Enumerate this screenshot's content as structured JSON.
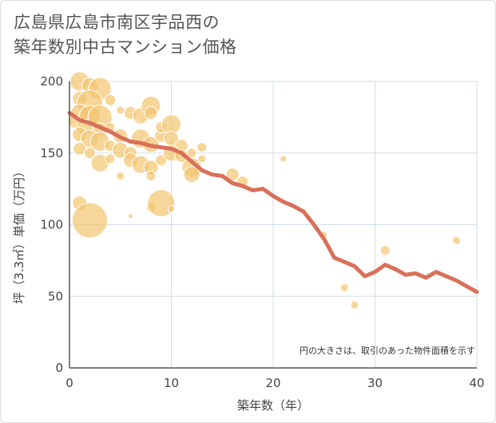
{
  "title_line1": "広島県広島市南区宇品西の",
  "title_line2": "築年数別中古マンション価格",
  "colors": {
    "bubble": "#f2c46d",
    "line": "#d9705a",
    "grid": "#d0dde6",
    "axis": "#555555"
  },
  "chart_data": {
    "type": "scatter",
    "xlabel": "築年数（年）",
    "ylabel": "坪（3.3㎡）単価（万円）",
    "xlim": [
      0,
      40
    ],
    "ylim": [
      0,
      200
    ],
    "x_ticks": [
      0,
      10,
      20,
      30,
      40
    ],
    "y_ticks": [
      0,
      50,
      100,
      150,
      200
    ],
    "annotation": "円の大きさは、取引のあった物件面積を示す",
    "grid": true,
    "bubbles": [
      {
        "x": 1,
        "y": 200,
        "s": 12
      },
      {
        "x": 2,
        "y": 197,
        "s": 10
      },
      {
        "x": 3,
        "y": 195,
        "s": 14
      },
      {
        "x": 1,
        "y": 188,
        "s": 9
      },
      {
        "x": 2,
        "y": 185,
        "s": 16
      },
      {
        "x": 4,
        "y": 187,
        "s": 7
      },
      {
        "x": 1,
        "y": 178,
        "s": 11
      },
      {
        "x": 2,
        "y": 176,
        "s": 13
      },
      {
        "x": 3,
        "y": 175,
        "s": 15
      },
      {
        "x": 0.5,
        "y": 172,
        "s": 8
      },
      {
        "x": 1.5,
        "y": 168,
        "s": 10
      },
      {
        "x": 3,
        "y": 166,
        "s": 9
      },
      {
        "x": 4,
        "y": 168,
        "s": 6
      },
      {
        "x": 5,
        "y": 180,
        "s": 5
      },
      {
        "x": 6,
        "y": 178,
        "s": 8
      },
      {
        "x": 7,
        "y": 176,
        "s": 10
      },
      {
        "x": 8,
        "y": 183,
        "s": 12
      },
      {
        "x": 8,
        "y": 178,
        "s": 8
      },
      {
        "x": 1,
        "y": 163,
        "s": 9
      },
      {
        "x": 2,
        "y": 160,
        "s": 11
      },
      {
        "x": 3,
        "y": 158,
        "s": 12
      },
      {
        "x": 4,
        "y": 155,
        "s": 7
      },
      {
        "x": 5,
        "y": 162,
        "s": 9
      },
      {
        "x": 5,
        "y": 152,
        "s": 10
      },
      {
        "x": 6,
        "y": 150,
        "s": 8
      },
      {
        "x": 7,
        "y": 160,
        "s": 12
      },
      {
        "x": 8,
        "y": 156,
        "s": 10
      },
      {
        "x": 9,
        "y": 162,
        "s": 8
      },
      {
        "x": 9,
        "y": 168,
        "s": 7
      },
      {
        "x": 10,
        "y": 170,
        "s": 12
      },
      {
        "x": 10,
        "y": 160,
        "s": 9
      },
      {
        "x": 11,
        "y": 155,
        "s": 8
      },
      {
        "x": 12,
        "y": 150,
        "s": 6
      },
      {
        "x": 1,
        "y": 153,
        "s": 8
      },
      {
        "x": 2,
        "y": 150,
        "s": 7
      },
      {
        "x": 3,
        "y": 143,
        "s": 11
      },
      {
        "x": 4,
        "y": 146,
        "s": 6
      },
      {
        "x": 6,
        "y": 145,
        "s": 9
      },
      {
        "x": 7,
        "y": 142,
        "s": 11
      },
      {
        "x": 8,
        "y": 140,
        "s": 9
      },
      {
        "x": 9,
        "y": 145,
        "s": 7
      },
      {
        "x": 10,
        "y": 150,
        "s": 10
      },
      {
        "x": 11,
        "y": 148,
        "s": 8
      },
      {
        "x": 12,
        "y": 140,
        "s": 12
      },
      {
        "x": 12,
        "y": 135,
        "s": 10
      },
      {
        "x": 13,
        "y": 146,
        "s": 5
      },
      {
        "x": 13,
        "y": 154,
        "s": 6
      },
      {
        "x": 5,
        "y": 134,
        "s": 5
      },
      {
        "x": 8,
        "y": 134,
        "s": 6
      },
      {
        "x": 16,
        "y": 135,
        "s": 8
      },
      {
        "x": 17,
        "y": 130,
        "s": 7
      },
      {
        "x": 1,
        "y": 115,
        "s": 9
      },
      {
        "x": 2,
        "y": 103,
        "s": 22
      },
      {
        "x": 8,
        "y": 112,
        "s": 6
      },
      {
        "x": 9,
        "y": 115,
        "s": 17
      },
      {
        "x": 10,
        "y": 111,
        "s": 4
      },
      {
        "x": 6,
        "y": 106,
        "s": 3
      },
      {
        "x": 21,
        "y": 146,
        "s": 4
      },
      {
        "x": 25,
        "y": 93,
        "s": 4
      },
      {
        "x": 27,
        "y": 56,
        "s": 5
      },
      {
        "x": 28,
        "y": 44,
        "s": 5
      },
      {
        "x": 31,
        "y": 82,
        "s": 6
      },
      {
        "x": 38,
        "y": 89,
        "s": 5
      }
    ],
    "series": [
      {
        "x": [
          0,
          1,
          2,
          3,
          4,
          5,
          6,
          7,
          8,
          9,
          10,
          11,
          12,
          13,
          14,
          15,
          16,
          17,
          18,
          19,
          20,
          21,
          22,
          23,
          24,
          25,
          26,
          27,
          28,
          29,
          30,
          31,
          32,
          33,
          34,
          35,
          36,
          37,
          38,
          39,
          40
        ],
        "values": [
          178,
          173,
          171,
          168,
          165,
          161,
          158,
          157,
          155,
          154,
          153,
          150,
          144,
          138,
          135,
          134,
          129,
          127,
          124,
          125,
          120,
          116,
          113,
          109,
          100,
          90,
          77,
          74,
          71,
          64,
          67,
          72,
          69,
          65,
          66,
          63,
          67,
          64,
          61,
          57,
          53
        ]
      }
    ]
  }
}
